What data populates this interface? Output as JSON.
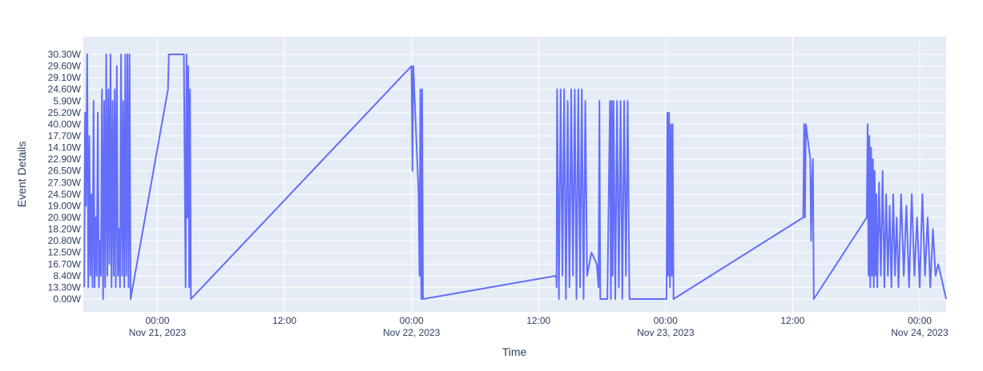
{
  "chart_data": {
    "type": "line",
    "xlabel": "Time",
    "ylabel": "Event Details",
    "x_axis": {
      "type": "date",
      "range": [
        "2023-11-20 17:00",
        "2023-11-24 02:30"
      ],
      "ticks": [
        {
          "time": "2023-11-21 00:00",
          "label1": "00:00",
          "label2": "Nov 21, 2023"
        },
        {
          "time": "2023-11-21 12:00",
          "label1": "12:00",
          "label2": ""
        },
        {
          "time": "2023-11-22 00:00",
          "label1": "00:00",
          "label2": "Nov 22, 2023"
        },
        {
          "time": "2023-11-22 12:00",
          "label1": "12:00",
          "label2": ""
        },
        {
          "time": "2023-11-23 00:00",
          "label1": "00:00",
          "label2": "Nov 23, 2023"
        },
        {
          "time": "2023-11-23 12:00",
          "label1": "12:00",
          "label2": ""
        },
        {
          "time": "2023-11-24 00:00",
          "label1": "00:00",
          "label2": "Nov 24, 2023"
        }
      ]
    },
    "y_axis": {
      "type": "category",
      "categories": [
        "0.00W",
        "13.30W",
        "8.40W",
        "16.70W",
        "12.50W",
        "20.80W",
        "18.20W",
        "20.90W",
        "19.00W",
        "24.50W",
        "27.30W",
        "26.50W",
        "22.90W",
        "14.10W",
        "17.70W",
        "40.00W",
        "25.20W",
        "5.90W",
        "24.60W",
        "29.10W",
        "29.60W",
        "30.30W"
      ]
    },
    "series": [
      {
        "color": "#636efa",
        "points": [
          [
            "2023-11-20 17:05",
            "13.30W"
          ],
          [
            "2023-11-20 17:10",
            "25.20W"
          ],
          [
            "2023-11-20 17:15",
            "19.00W"
          ],
          [
            "2023-11-20 17:22",
            "30.30W"
          ],
          [
            "2023-11-20 17:28",
            "13.30W"
          ],
          [
            "2023-11-20 17:34",
            "17.70W"
          ],
          [
            "2023-11-20 17:40",
            "8.40W"
          ],
          [
            "2023-11-20 17:46",
            "24.50W"
          ],
          [
            "2023-11-20 17:52",
            "13.30W"
          ],
          [
            "2023-11-20 17:58",
            "5.90W"
          ],
          [
            "2023-11-20 18:04",
            "13.30W"
          ],
          [
            "2023-11-20 18:10",
            "20.90W"
          ],
          [
            "2023-11-20 18:16",
            "8.40W"
          ],
          [
            "2023-11-20 18:22",
            "25.20W"
          ],
          [
            "2023-11-20 18:28",
            "13.30W"
          ],
          [
            "2023-11-20 18:34",
            "20.80W"
          ],
          [
            "2023-11-20 18:40",
            "8.40W"
          ],
          [
            "2023-11-20 18:46",
            "24.60W"
          ],
          [
            "2023-11-20 18:52",
            "0.00W"
          ],
          [
            "2023-11-20 18:58",
            "5.90W"
          ],
          [
            "2023-11-20 19:04",
            "13.30W"
          ],
          [
            "2023-11-20 19:10",
            "30.30W"
          ],
          [
            "2023-11-20 19:16",
            "8.40W"
          ],
          [
            "2023-11-20 19:22",
            "24.60W"
          ],
          [
            "2023-11-20 19:28",
            "16.70W"
          ],
          [
            "2023-11-20 19:34",
            "30.30W"
          ],
          [
            "2023-11-20 19:40",
            "13.30W"
          ],
          [
            "2023-11-20 19:46",
            "5.90W"
          ],
          [
            "2023-11-20 19:52",
            "8.40W"
          ],
          [
            "2023-11-20 19:58",
            "24.60W"
          ],
          [
            "2023-11-20 20:04",
            "13.30W"
          ],
          [
            "2023-11-20 20:10",
            "29.60W"
          ],
          [
            "2023-11-20 20:16",
            "8.40W"
          ],
          [
            "2023-11-20 20:22",
            "18.20W"
          ],
          [
            "2023-11-20 20:28",
            "13.30W"
          ],
          [
            "2023-11-20 20:34",
            "30.30W"
          ],
          [
            "2023-11-20 20:40",
            "8.40W"
          ],
          [
            "2023-11-20 20:46",
            "5.90W"
          ],
          [
            "2023-11-20 20:52",
            "13.30W"
          ],
          [
            "2023-11-20 20:58",
            "30.30W"
          ],
          [
            "2023-11-20 21:04",
            "8.40W"
          ],
          [
            "2023-11-20 21:10",
            "30.30W"
          ],
          [
            "2023-11-20 21:16",
            "13.30W"
          ],
          [
            "2023-11-20 21:22",
            "30.30W"
          ],
          [
            "2023-11-20 21:28",
            "0.00W"
          ],
          [
            "2023-11-21 01:00",
            "24.60W"
          ],
          [
            "2023-11-21 01:05",
            "30.30W"
          ],
          [
            "2023-11-21 02:30",
            "30.30W"
          ],
          [
            "2023-11-21 02:40",
            "13.30W"
          ],
          [
            "2023-11-21 02:45",
            "30.30W"
          ],
          [
            "2023-11-21 02:50",
            "20.90W"
          ],
          [
            "2023-11-21 02:55",
            "29.60W"
          ],
          [
            "2023-11-21 03:00",
            "13.30W"
          ],
          [
            "2023-11-21 03:05",
            "24.60W"
          ],
          [
            "2023-11-21 03:10",
            "0.00W"
          ],
          [
            "2023-11-22 00:00",
            "29.60W"
          ],
          [
            "2023-11-22 00:05",
            "26.50W"
          ],
          [
            "2023-11-22 00:10",
            "29.60W"
          ],
          [
            "2023-11-22 00:40",
            "24.50W"
          ],
          [
            "2023-11-22 00:45",
            "8.40W"
          ],
          [
            "2023-11-22 00:50",
            "24.60W"
          ],
          [
            "2023-11-22 00:55",
            "0.00W"
          ],
          [
            "2023-11-22 01:00",
            "24.60W"
          ],
          [
            "2023-11-22 01:05",
            "0.00W"
          ],
          [
            "2023-11-22 13:40",
            "8.40W"
          ],
          [
            "2023-11-22 13:42",
            "13.30W"
          ],
          [
            "2023-11-22 13:45",
            "24.60W"
          ],
          [
            "2023-11-22 13:55",
            "0.00W"
          ],
          [
            "2023-11-22 14:05",
            "24.60W"
          ],
          [
            "2023-11-22 14:15",
            "8.40W"
          ],
          [
            "2023-11-22 14:25",
            "24.60W"
          ],
          [
            "2023-11-22 14:35",
            "0.00W"
          ],
          [
            "2023-11-22 14:45",
            "5.90W"
          ],
          [
            "2023-11-22 14:55",
            "13.30W"
          ],
          [
            "2023-11-22 15:05",
            "24.60W"
          ],
          [
            "2023-11-22 15:15",
            "8.40W"
          ],
          [
            "2023-11-22 15:25",
            "24.60W"
          ],
          [
            "2023-11-22 15:35",
            "0.00W"
          ],
          [
            "2023-11-22 15:45",
            "24.60W"
          ],
          [
            "2023-11-22 15:55",
            "13.30W"
          ],
          [
            "2023-11-22 16:05",
            "24.60W"
          ],
          [
            "2023-11-22 16:15",
            "0.00W"
          ],
          [
            "2023-11-22 16:25",
            "5.90W"
          ],
          [
            "2023-11-22 16:35",
            "8.40W"
          ],
          [
            "2023-11-22 17:00",
            "12.50W"
          ],
          [
            "2023-11-22 17:30",
            "16.70W"
          ],
          [
            "2023-11-22 17:40",
            "13.30W"
          ],
          [
            "2023-11-22 17:45",
            "5.90W"
          ],
          [
            "2023-11-22 17:50",
            "0.00W"
          ],
          [
            "2023-11-22 18:30",
            "0.00W"
          ],
          [
            "2023-11-22 18:45",
            "5.90W"
          ],
          [
            "2023-11-22 18:50",
            "0.00W"
          ],
          [
            "2023-11-22 18:55",
            "5.90W"
          ],
          [
            "2023-11-22 19:00",
            "8.40W"
          ],
          [
            "2023-11-22 19:05",
            "5.90W"
          ],
          [
            "2023-11-22 19:15",
            "0.00W"
          ],
          [
            "2023-11-22 19:25",
            "5.90W"
          ],
          [
            "2023-11-22 19:35",
            "13.30W"
          ],
          [
            "2023-11-22 19:45",
            "5.90W"
          ],
          [
            "2023-11-22 19:55",
            "0.00W"
          ],
          [
            "2023-11-22 20:05",
            "5.90W"
          ],
          [
            "2023-11-22 20:15",
            "8.40W"
          ],
          [
            "2023-11-22 20:25",
            "5.90W"
          ],
          [
            "2023-11-22 20:35",
            "0.00W"
          ],
          [
            "2023-11-23 00:05",
            "0.00W"
          ],
          [
            "2023-11-23 00:10",
            "25.20W"
          ],
          [
            "2023-11-23 00:15",
            "8.40W"
          ],
          [
            "2023-11-23 00:20",
            "25.20W"
          ],
          [
            "2023-11-23 00:25",
            "13.30W"
          ],
          [
            "2023-11-23 00:30",
            "40.00W"
          ],
          [
            "2023-11-23 00:35",
            "8.40W"
          ],
          [
            "2023-11-23 00:40",
            "40.00W"
          ],
          [
            "2023-11-23 00:45",
            "0.00W"
          ],
          [
            "2023-11-23 13:00",
            "20.90W"
          ],
          [
            "2023-11-23 13:05",
            "40.00W"
          ],
          [
            "2023-11-23 13:10",
            "20.90W"
          ],
          [
            "2023-11-23 13:15",
            "40.00W"
          ],
          [
            "2023-11-23 13:40",
            "22.90W"
          ],
          [
            "2023-11-23 13:45",
            "20.80W"
          ],
          [
            "2023-11-23 13:50",
            "27.30W"
          ],
          [
            "2023-11-23 13:55",
            "22.90W"
          ],
          [
            "2023-11-23 14:00",
            "0.00W"
          ],
          [
            "2023-11-23 19:00",
            "20.90W"
          ],
          [
            "2023-11-23 19:05",
            "40.00W"
          ],
          [
            "2023-11-23 19:10",
            "8.40W"
          ],
          [
            "2023-11-23 19:15",
            "17.70W"
          ],
          [
            "2023-11-23 19:20",
            "13.30W"
          ],
          [
            "2023-11-23 19:25",
            "14.10W"
          ],
          [
            "2023-11-23 19:30",
            "8.40W"
          ],
          [
            "2023-11-23 19:35",
            "22.90W"
          ],
          [
            "2023-11-23 19:40",
            "13.30W"
          ],
          [
            "2023-11-23 19:45",
            "26.50W"
          ],
          [
            "2023-11-23 19:50",
            "8.40W"
          ],
          [
            "2023-11-23 19:55",
            "24.50W"
          ],
          [
            "2023-11-23 20:00",
            "13.30W"
          ],
          [
            "2023-11-23 20:10",
            "27.30W"
          ],
          [
            "2023-11-23 20:20",
            "8.40W"
          ],
          [
            "2023-11-23 20:30",
            "26.50W"
          ],
          [
            "2023-11-23 20:40",
            "13.30W"
          ],
          [
            "2023-11-23 20:50",
            "24.50W"
          ],
          [
            "2023-11-23 21:00",
            "8.40W"
          ],
          [
            "2023-11-23 21:10",
            "19.00W"
          ],
          [
            "2023-11-23 21:20",
            "13.30W"
          ],
          [
            "2023-11-23 21:30",
            "24.50W"
          ],
          [
            "2023-11-23 21:40",
            "8.40W"
          ],
          [
            "2023-11-23 21:50",
            "20.90W"
          ],
          [
            "2023-11-23 22:00",
            "13.30W"
          ],
          [
            "2023-11-23 22:15",
            "24.50W"
          ],
          [
            "2023-11-23 22:30",
            "8.40W"
          ],
          [
            "2023-11-23 22:45",
            "19.00W"
          ],
          [
            "2023-11-23 23:00",
            "13.30W"
          ],
          [
            "2023-11-23 23:15",
            "24.50W"
          ],
          [
            "2023-11-23 23:30",
            "8.40W"
          ],
          [
            "2023-11-23 23:45",
            "20.90W"
          ],
          [
            "2023-11-24 00:00",
            "13.30W"
          ],
          [
            "2023-11-24 00:15",
            "24.50W"
          ],
          [
            "2023-11-24 00:30",
            "8.40W"
          ],
          [
            "2023-11-24 00:45",
            "20.90W"
          ],
          [
            "2023-11-24 01:00",
            "13.30W"
          ],
          [
            "2023-11-24 01:15",
            "18.20W"
          ],
          [
            "2023-11-24 01:30",
            "8.40W"
          ],
          [
            "2023-11-24 01:45",
            "16.70W"
          ],
          [
            "2023-11-24 02:00",
            "8.40W"
          ],
          [
            "2023-11-24 02:15",
            "13.30W"
          ],
          [
            "2023-11-24 02:30",
            "0.00W"
          ]
        ]
      }
    ],
    "grid": true,
    "legend": "none"
  }
}
